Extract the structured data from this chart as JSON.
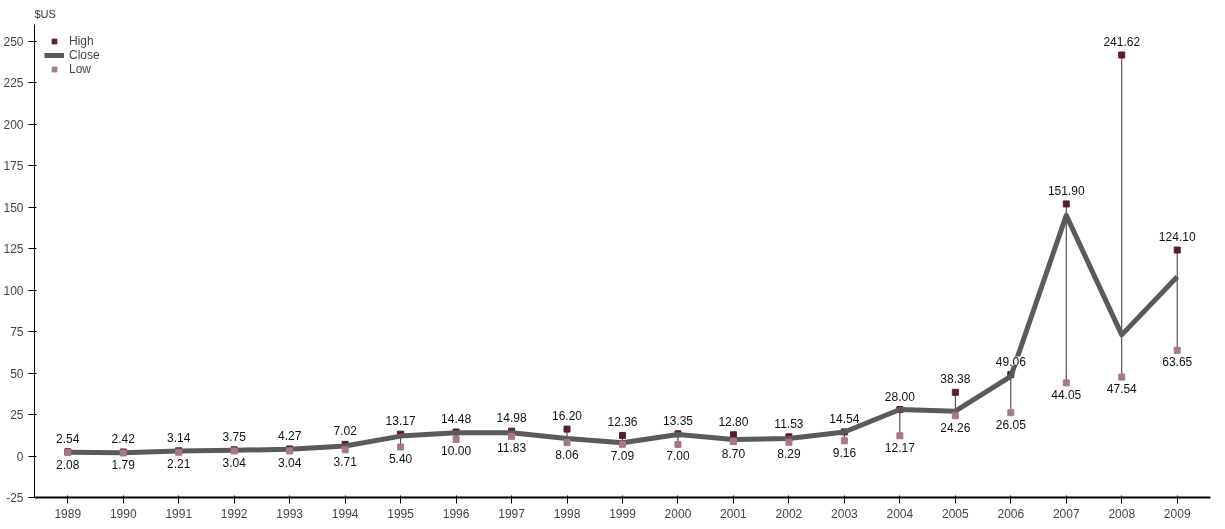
{
  "chart_data": {
    "type": "line",
    "ylabel": "$US",
    "categories": [
      "1989",
      "1990",
      "1991",
      "1992",
      "1993",
      "1994",
      "1995",
      "1996",
      "1997",
      "1998",
      "1999",
      "2000",
      "2001",
      "2002",
      "2003",
      "2004",
      "2005",
      "2006",
      "2007",
      "2008",
      "2009"
    ],
    "series": [
      {
        "name": "High",
        "type": "scatter",
        "marker": "square",
        "color": "#5c1a3a",
        "values": [
          2.54,
          2.42,
          3.14,
          3.75,
          4.27,
          7.02,
          13.17,
          14.48,
          14.98,
          16.2,
          12.36,
          13.35,
          12.8,
          11.53,
          14.54,
          28.0,
          38.38,
          49.06,
          151.9,
          241.62,
          124.1
        ],
        "value_labels": [
          "2.54",
          "2.42",
          "3.14",
          "3.75",
          "4.27",
          "7.02",
          "13.17",
          "14.48",
          "14.98",
          "16.20",
          "12.36",
          "13.35",
          "12.80",
          "11.53",
          "14.54",
          "28.00",
          "38.38",
          "49.06",
          "151.90",
          "241.62",
          "124.10"
        ]
      },
      {
        "name": "Close",
        "color": "#5a5a5a",
        "values": [
          2.3,
          2.0,
          3.0,
          3.5,
          4.0,
          6.0,
          12.0,
          14.0,
          14.0,
          10.5,
          8.0,
          13.0,
          10.0,
          10.5,
          14.5,
          28.0,
          27.0,
          48.0,
          145.0,
          73.0,
          108.0
        ]
      },
      {
        "name": "Low",
        "type": "scatter",
        "marker": "square",
        "color": "#a8788a",
        "values": [
          2.08,
          1.79,
          2.21,
          3.04,
          3.04,
          3.71,
          5.4,
          10.0,
          11.83,
          8.06,
          7.09,
          7.0,
          8.7,
          8.29,
          9.16,
          12.17,
          24.26,
          26.05,
          44.05,
          47.54,
          63.65
        ],
        "value_labels": [
          "2.08",
          "1.79",
          "2.21",
          "3.04",
          "3.04",
          "3.71",
          "5.40",
          "10.00",
          "11.83",
          "8.06",
          "7.09",
          "7.00",
          "8.70",
          "8.29",
          "9.16",
          "12.17",
          "24.26",
          "26.05",
          "44.05",
          "47.54",
          "63.65"
        ]
      }
    ],
    "ylim": [
      -25,
      260
    ],
    "yticks": [
      -25,
      0,
      25,
      50,
      75,
      100,
      125,
      150,
      175,
      200,
      225,
      250
    ],
    "grid": false,
    "legend": "top left"
  }
}
